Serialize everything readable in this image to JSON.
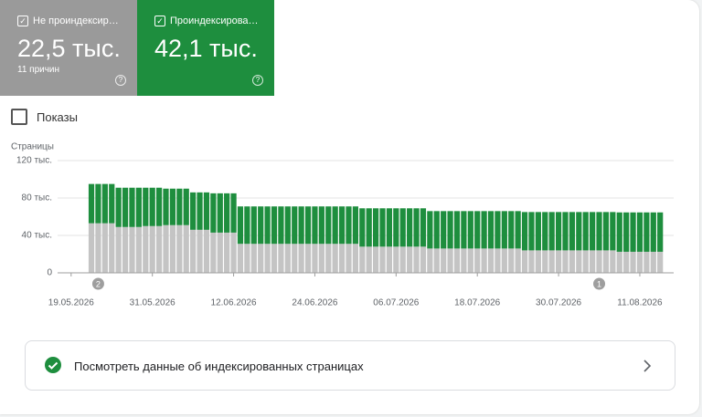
{
  "cards": [
    {
      "label": "Не проиндексир…",
      "value": "22,5 тыс.",
      "note": "11 причин"
    },
    {
      "label": "Проиндексирова…",
      "value": "42,1 тыс."
    }
  ],
  "impressions_label": "Показы",
  "link": "Посмотреть данные об индексированных страницах",
  "chart_data": {
    "type": "stacked-bar",
    "y_label": "Страницы",
    "x": [
      "2026-05-22",
      "2026-05-23",
      "2026-05-24",
      "2026-05-25",
      "2026-05-26",
      "2026-05-27",
      "2026-05-28",
      "2026-05-29",
      "2026-05-30",
      "2026-05-31",
      "2026-06-01",
      "2026-06-02",
      "2026-06-03",
      "2026-06-04",
      "2026-06-05",
      "2026-06-06",
      "2026-06-07",
      "2026-06-08",
      "2026-06-09",
      "2026-06-10",
      "2026-06-11",
      "2026-06-12",
      "2026-06-13",
      "2026-06-14",
      "2026-06-15",
      "2026-06-16",
      "2026-06-17",
      "2026-06-18",
      "2026-06-19",
      "2026-06-20",
      "2026-06-21",
      "2026-06-22",
      "2026-06-23",
      "2026-06-24",
      "2026-06-25",
      "2026-06-26",
      "2026-06-27",
      "2026-06-28",
      "2026-06-29",
      "2026-06-30",
      "2026-07-01",
      "2026-07-02",
      "2026-07-03",
      "2026-07-04",
      "2026-07-05",
      "2026-07-06",
      "2026-07-07",
      "2026-07-08",
      "2026-07-09",
      "2026-07-10",
      "2026-07-11",
      "2026-07-12",
      "2026-07-13",
      "2026-07-14",
      "2026-07-15",
      "2026-07-16",
      "2026-07-17",
      "2026-07-18",
      "2026-07-19",
      "2026-07-20",
      "2026-07-21",
      "2026-07-22",
      "2026-07-23",
      "2026-07-24",
      "2026-07-25",
      "2026-07-26",
      "2026-07-27",
      "2026-07-28",
      "2026-07-29",
      "2026-07-30",
      "2026-07-31",
      "2026-08-01",
      "2026-08-02",
      "2026-08-03",
      "2026-08-04",
      "2026-08-05",
      "2026-08-06",
      "2026-08-07",
      "2026-08-08",
      "2026-08-09",
      "2026-08-10",
      "2026-08-11",
      "2026-08-12",
      "2026-08-13",
      "2026-08-14"
    ],
    "series": [
      {
        "color": "#c4c4c4",
        "values": [
          53,
          53,
          53,
          53,
          49,
          49,
          49,
          49,
          50,
          50,
          50,
          51,
          51,
          51,
          51,
          46,
          46,
          46,
          43,
          43,
          43,
          43,
          31,
          31,
          31,
          31,
          31,
          31,
          31,
          31,
          31,
          31,
          31,
          31,
          31,
          31,
          31,
          31,
          31,
          31,
          28,
          28,
          28,
          28,
          28,
          28,
          28,
          28,
          28,
          28,
          26,
          26,
          26,
          26,
          26,
          26,
          26,
          26,
          26,
          26,
          26,
          26,
          26,
          26,
          24,
          24,
          24,
          24,
          24,
          24,
          24,
          24,
          24,
          24,
          24,
          24,
          24,
          24,
          22.5,
          22.5,
          22.5,
          22.5,
          22.5,
          22.5,
          22.5
        ]
      },
      {
        "color": "#1e8e3e",
        "values": [
          42,
          42,
          42,
          42,
          42,
          42,
          42,
          42,
          41,
          41,
          41,
          39,
          39,
          39,
          39,
          40,
          40,
          40,
          42,
          42,
          42,
          42,
          40,
          40,
          40,
          40,
          40,
          40,
          40,
          40,
          40,
          40,
          40,
          40,
          40,
          40,
          40,
          40,
          40,
          40,
          41,
          41,
          41,
          41,
          41,
          41,
          41,
          41,
          41,
          41,
          40,
          40,
          40,
          40,
          40,
          40,
          40,
          40,
          40,
          40,
          40,
          40,
          40,
          40,
          41,
          41,
          41,
          41,
          41,
          41,
          41,
          41,
          41,
          41,
          41,
          41,
          41,
          41,
          42.1,
          42.1,
          42.1,
          42.1,
          42.1,
          42.1,
          42.1
        ]
      }
    ],
    "xlim": [
      "2026-05-17",
      "2026-08-16"
    ],
    "xticks": [
      {
        "value": "2026-05-19",
        "label": "19.05.2026"
      },
      {
        "value": "2026-05-31",
        "label": "31.05.2026"
      },
      {
        "value": "2026-06-12",
        "label": "12.06.2026"
      },
      {
        "value": "2026-06-24",
        "label": "24.06.2026"
      },
      {
        "value": "2026-07-06",
        "label": "06.07.2026"
      },
      {
        "value": "2026-07-18",
        "label": "18.07.2026"
      },
      {
        "value": "2026-07-30",
        "label": "30.07.2026"
      },
      {
        "value": "2026-08-11",
        "label": "11.08.2026"
      }
    ],
    "ylim": [
      0,
      120
    ],
    "yticks": [
      0,
      {
        "value": 40,
        "label": "40 тыс."
      },
      {
        "value": 80,
        "label": "80 тыс."
      },
      {
        "value": 120,
        "label": "120 тыс."
      }
    ],
    "grid": true,
    "annotations": [
      {
        "x": "2026-05-23",
        "label": "2"
      },
      {
        "x": "2026-08-05",
        "label": "1"
      }
    ]
  }
}
